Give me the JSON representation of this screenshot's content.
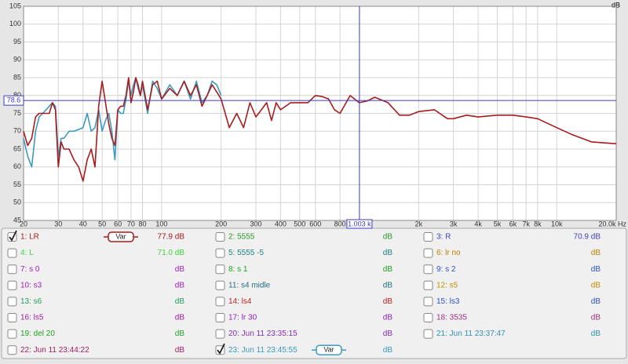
{
  "chart_data": {
    "type": "line",
    "y_label": "dB",
    "xscale": "log",
    "grid": true,
    "xlim": [
      20,
      20000
    ],
    "ylim": [
      45,
      105
    ],
    "yticks": [
      45,
      50,
      55,
      60,
      65,
      70,
      75,
      80,
      85,
      90,
      95,
      100,
      105
    ],
    "xticks": [
      20,
      30,
      40,
      50,
      60,
      70,
      80,
      100,
      200,
      300,
      400,
      500,
      600,
      800,
      {
        "value": 2000,
        "label": "2k"
      },
      {
        "value": 3000,
        "label": "3k"
      },
      {
        "value": 4000,
        "label": "4k"
      },
      {
        "value": 5000,
        "label": "5k"
      },
      {
        "value": 6000,
        "label": "6k"
      },
      {
        "value": 7000,
        "label": "7k"
      },
      {
        "value": 8000,
        "label": "8k"
      },
      {
        "value": 10000,
        "label": "10k"
      },
      {
        "value": 20000,
        "label": "20.0k Hz"
      }
    ],
    "cursor": {
      "x": {
        "value": 1003,
        "label": "1.003 k"
      },
      "y": 78.6,
      "color": "#3a3ac8"
    },
    "x": [
      20,
      21,
      22,
      23,
      24,
      25,
      26,
      27,
      28,
      29,
      30,
      31,
      32,
      34,
      36,
      38,
      40,
      42,
      44,
      46,
      48,
      50,
      52,
      54,
      56,
      58,
      60,
      62,
      64,
      66,
      68,
      70,
      72,
      74,
      76,
      78,
      80,
      85,
      90,
      95,
      100,
      110,
      120,
      130,
      140,
      150,
      160,
      170,
      180,
      190,
      200,
      220,
      240,
      260,
      280,
      300,
      320,
      340,
      360,
      380,
      400,
      450,
      500,
      550,
      600,
      650,
      700,
      750,
      800,
      900,
      1000,
      1100,
      1200,
      1400,
      1600,
      1800,
      2000,
      2400,
      2800,
      3000,
      3500,
      4000,
      5000,
      6000,
      7000,
      8000,
      10000,
      12000,
      15000,
      20000
    ],
    "series": [
      {
        "name": "1: LR",
        "color": "#a81c1c",
        "readout": "77.9 dB",
        "checked": true,
        "button": "Var",
        "values": [
          70,
          66,
          68,
          74,
          75,
          75,
          75,
          75,
          78,
          76,
          60,
          67,
          65,
          65,
          62,
          60,
          56,
          62,
          65,
          60,
          77,
          84,
          78,
          72,
          68,
          66,
          76,
          77,
          77,
          80,
          85,
          78,
          81,
          85,
          83,
          80,
          84,
          76,
          83,
          84,
          79,
          82,
          80,
          84,
          80,
          83,
          77,
          80,
          83,
          81,
          79,
          71,
          75,
          71,
          78,
          74,
          76,
          78,
          73,
          78,
          76,
          78,
          78,
          78,
          80,
          79.7,
          79,
          76,
          75,
          80,
          78,
          78.5,
          79.5,
          78,
          74.5,
          74.5,
          75.5,
          76,
          73.5,
          73.5,
          74.5,
          74,
          74.5,
          74.5,
          74,
          73.5,
          71,
          69,
          67,
          66.5
        ]
      },
      {
        "name": "2: 5555",
        "color": "#2a9a2a",
        "readout": "dB",
        "checked": false
      },
      {
        "name": "3: R",
        "color": "#4040c0",
        "readout": "70.9 dB",
        "checked": false
      },
      {
        "name": "4: L",
        "color": "#3cd43c",
        "readout": "71.0 dB",
        "checked": false
      },
      {
        "name": "5: 5555 -5",
        "color": "#1f7f80",
        "readout": "dB",
        "checked": false
      },
      {
        "name": "6: lr no",
        "color": "#c08000",
        "readout": "dB",
        "checked": false
      },
      {
        "name": "7: s 0",
        "color": "#a020c0",
        "readout": "dB",
        "checked": false
      },
      {
        "name": "8: s 1",
        "color": "#20a020",
        "readout": "dB",
        "checked": false
      },
      {
        "name": "9: s 2",
        "color": "#3050c0",
        "readout": "dB",
        "checked": false
      },
      {
        "name": "10: s3",
        "color": "#a020c0",
        "readout": "dB",
        "checked": false
      },
      {
        "name": "11: s4 midle",
        "color": "#207080",
        "readout": "dB",
        "checked": false
      },
      {
        "name": "12: s5",
        "color": "#c09000",
        "readout": "dB",
        "checked": false
      },
      {
        "name": "13: s6",
        "color": "#20a060",
        "readout": "dB",
        "checked": false
      },
      {
        "name": "14: ls4",
        "color": "#c02020",
        "readout": "dB",
        "checked": false
      },
      {
        "name": "15: ls3",
        "color": "#3050c0",
        "readout": "dB",
        "checked": false
      },
      {
        "name": "16: ls5",
        "color": "#a020a0",
        "readout": "dB",
        "checked": false
      },
      {
        "name": "17: lr 30",
        "color": "#9020c0",
        "readout": "dB",
        "checked": false
      },
      {
        "name": "18: 3535",
        "color": "#a03080",
        "readout": "dB",
        "checked": false
      },
      {
        "name": "19: del 20",
        "color": "#20a020",
        "readout": "dB",
        "checked": false
      },
      {
        "name": "20: Jun 11 23:35:15",
        "color": "#8030b0",
        "readout": "dB",
        "checked": false
      },
      {
        "name": "21: Jun 11 23:37:47",
        "color": "#3090b0",
        "readout": "dB",
        "checked": false
      },
      {
        "name": "22: Jun 11 23:44:22",
        "color": "#a02060",
        "readout": "dB",
        "checked": false
      },
      {
        "name": "23: Jun 11 23:45:55",
        "color": "#3a9ac0",
        "readout": "dB",
        "checked": true,
        "button": "Var",
        "values": [
          68,
          63,
          60,
          70,
          74,
          75,
          76,
          77,
          78,
          77,
          63,
          68,
          68,
          70,
          70,
          70.5,
          71,
          75,
          70,
          71,
          76,
          70,
          73,
          75,
          70,
          62,
          76,
          75,
          75,
          79,
          84,
          80,
          83,
          85,
          82,
          80,
          83,
          75,
          84,
          82,
          79,
          83,
          80,
          84,
          79,
          84,
          78,
          80,
          84,
          83,
          80,
          null,
          null,
          null,
          null,
          null,
          null,
          null,
          null,
          null,
          null,
          null,
          null,
          null,
          null,
          null,
          null,
          null,
          null,
          null,
          null,
          null,
          null,
          null,
          null,
          null,
          null,
          null,
          null,
          null,
          null,
          null,
          null,
          null,
          null,
          null,
          null,
          null,
          null,
          null
        ]
      }
    ]
  }
}
